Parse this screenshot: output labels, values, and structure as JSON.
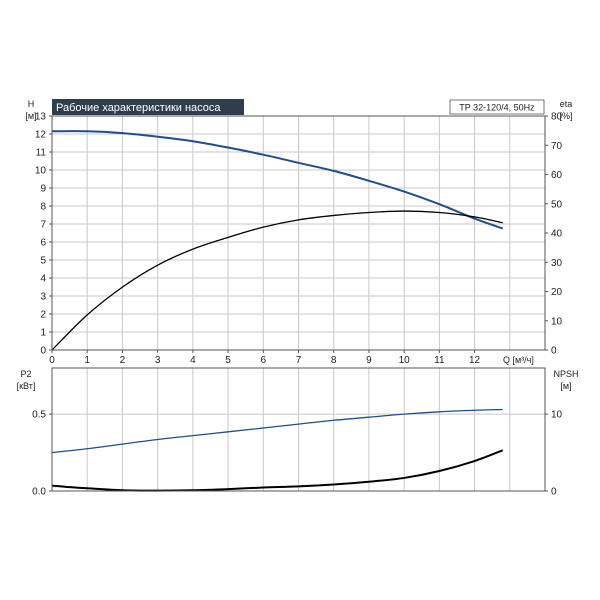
{
  "colors": {
    "grid": "#c8c8c8",
    "frame": "#555555",
    "blue": "#1f4e8c",
    "black": "#000000",
    "title_bg": "#2e3e4e"
  },
  "chart_data": [
    {
      "type": "line",
      "title": "Рабочие характеристики насоса",
      "subtitle": "TP 32-120/4, 50Hz",
      "xlabel": "Q [м³/ч]",
      "ylabel": "H",
      "ylabel_unit": "[м]",
      "y2label": "eta",
      "y2label_unit": "[%]",
      "xlim": [
        0,
        14
      ],
      "ylim": [
        0,
        13
      ],
      "y2lim": [
        0,
        80
      ],
      "xticks": [
        "0",
        "1",
        "2",
        "3",
        "4",
        "5",
        "6",
        "7",
        "8",
        "9",
        "10",
        "11",
        "12"
      ],
      "yticks": [
        "0",
        "1",
        "2",
        "3",
        "4",
        "5",
        "6",
        "7",
        "8",
        "9",
        "10",
        "11",
        "12",
        "13"
      ],
      "y2ticks": [
        "0",
        "10",
        "20",
        "30",
        "40",
        "50",
        "60",
        "70",
        "80"
      ],
      "grid": true,
      "series": [
        {
          "axis": "left",
          "color": "#1f4e8c",
          "x": [
            0,
            1,
            2,
            3,
            4,
            5,
            6,
            7,
            8,
            9,
            10,
            11,
            12,
            12.8
          ],
          "y": [
            12.15,
            12.15,
            12.05,
            11.85,
            11.6,
            11.25,
            10.85,
            10.4,
            9.95,
            9.4,
            8.8,
            8.1,
            7.3,
            6.75
          ]
        },
        {
          "axis": "right",
          "color": "#000000",
          "x": [
            0,
            1,
            2,
            3,
            4,
            5,
            6,
            7,
            8,
            9,
            10,
            11,
            12,
            12.8
          ],
          "y": [
            0,
            12,
            21.5,
            29,
            34.5,
            38.5,
            42,
            44.5,
            46,
            47,
            47.5,
            47,
            45.5,
            43.5
          ]
        }
      ]
    },
    {
      "type": "line",
      "ylabel": "P2",
      "ylabel_unit": "[кВт]",
      "y2label": "NPSH",
      "y2label_unit": "[м]",
      "xlim": [
        0,
        14
      ],
      "ylim": [
        0,
        0.8
      ],
      "y2lim": [
        0,
        16
      ],
      "yticks": [
        "0.0",
        "0.5"
      ],
      "y2ticks": [
        "0",
        "10"
      ],
      "grid": true,
      "series": [
        {
          "axis": "left",
          "color": "#1f4e8c",
          "x": [
            0,
            1,
            2,
            3,
            4,
            5,
            6,
            7,
            8,
            9,
            10,
            11,
            12,
            12.8
          ],
          "y": [
            0.25,
            0.275,
            0.305,
            0.335,
            0.36,
            0.385,
            0.41,
            0.435,
            0.46,
            0.48,
            0.5,
            0.515,
            0.525,
            0.53
          ]
        },
        {
          "axis": "right",
          "color": "#000000",
          "x": [
            0,
            0.5,
            1,
            2,
            3,
            4,
            5,
            6,
            7,
            8,
            9,
            10,
            11,
            12,
            12.8
          ],
          "y": [
            0.7,
            0.5,
            0.35,
            0.1,
            0.05,
            0.1,
            0.25,
            0.45,
            0.6,
            0.85,
            1.2,
            1.7,
            2.6,
            3.9,
            5.3
          ]
        }
      ]
    }
  ]
}
